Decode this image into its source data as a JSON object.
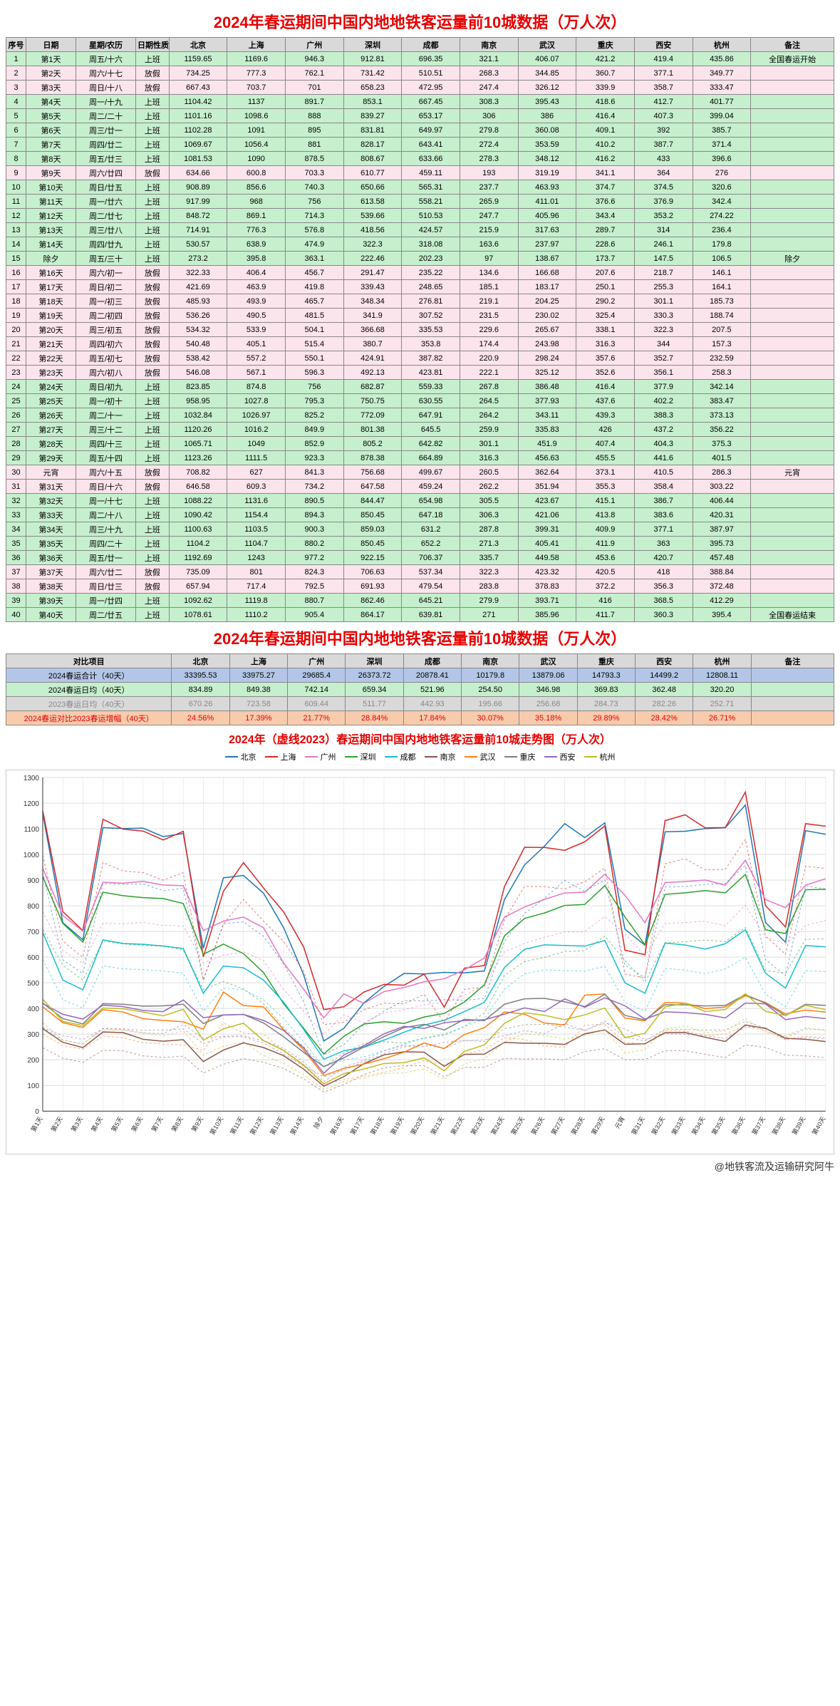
{
  "title1": "2024年春运期间中国内地地铁客运量前10城数据（万人次）",
  "title2": "2024年春运期间中国内地地铁客运量前10城数据（万人次）",
  "chartTitle": "2024年（虚线2023）春运期间中国内地地铁客运量前10城走势图（万人次）",
  "credit": "@地铁客流及运输研究阿牛",
  "headers": [
    "序号",
    "日期",
    "星期/农历",
    "日期性质",
    "北京",
    "上海",
    "广州",
    "深圳",
    "成都",
    "南京",
    "武汉",
    "重庆",
    "西安",
    "杭州",
    "备注"
  ],
  "cities": [
    "北京",
    "上海",
    "广州",
    "深圳",
    "成都",
    "南京",
    "武汉",
    "重庆",
    "西安",
    "杭州"
  ],
  "cityColors": [
    "#1f77b4",
    "#d62728",
    "#e377c2",
    "#2ca02c",
    "#17becf",
    "#8c564b",
    "#ff7f0e",
    "#7f7f7f",
    "#9467bd",
    "#bcbd22"
  ],
  "rows": [
    {
      "seq": 1,
      "day": "第1天",
      "week": "周五/十六",
      "type": "上班",
      "v": [
        1159.65,
        1169.6,
        946.3,
        912.81,
        696.35,
        321.1,
        406.07,
        421.2,
        419.4,
        435.86
      ],
      "note": "全国春运开始",
      "cls": "work"
    },
    {
      "seq": 2,
      "day": "第2天",
      "week": "周六/十七",
      "type": "放假",
      "v": [
        734.25,
        777.3,
        762.1,
        731.42,
        510.51,
        268.3,
        344.85,
        360.7,
        377.1,
        349.77
      ],
      "note": "",
      "cls": "pink"
    },
    {
      "seq": 3,
      "day": "第3天",
      "week": "周日/十八",
      "type": "放假",
      "v": [
        667.43,
        703.7,
        701,
        658.23,
        472.95,
        247.4,
        326.12,
        339.9,
        358.7,
        333.47
      ],
      "note": "",
      "cls": "pink"
    },
    {
      "seq": 4,
      "day": "第4天",
      "week": "周一/十九",
      "type": "上班",
      "v": [
        1104.42,
        1137,
        891.7,
        853.1,
        667.45,
        308.3,
        395.43,
        418.6,
        412.7,
        401.77
      ],
      "note": "",
      "cls": "work"
    },
    {
      "seq": 5,
      "day": "第5天",
      "week": "周二/二十",
      "type": "上班",
      "v": [
        1101.16,
        1098.6,
        888.0,
        839.27,
        653.17,
        306,
        386,
        416.4,
        407.3,
        399.04
      ],
      "note": "",
      "cls": "work"
    },
    {
      "seq": 6,
      "day": "第6天",
      "week": "周三/廿一",
      "type": "上班",
      "v": [
        1102.28,
        1091,
        895,
        831.81,
        649.97,
        279.8,
        360.08,
        409.1,
        392,
        385.7
      ],
      "note": "",
      "cls": "work"
    },
    {
      "seq": 7,
      "day": "第7天",
      "week": "周四/廿二",
      "type": "上班",
      "v": [
        1069.67,
        1056.4,
        881,
        828.17,
        643.41,
        272.4,
        353.59,
        410.2,
        387.7,
        371.4
      ],
      "note": "",
      "cls": "work"
    },
    {
      "seq": 8,
      "day": "第8天",
      "week": "周五/廿三",
      "type": "上班",
      "v": [
        1081.53,
        1090,
        878.5,
        808.67,
        633.66,
        278.3,
        348.12,
        416.2,
        433,
        396.6
      ],
      "note": "",
      "cls": "work"
    },
    {
      "seq": 9,
      "day": "第9天",
      "week": "周六/廿四",
      "type": "放假",
      "v": [
        634.66,
        600.8,
        703.3,
        610.77,
        459.11,
        193,
        319.19,
        341.1,
        364,
        276
      ],
      "note": "",
      "cls": "pink"
    },
    {
      "seq": 10,
      "day": "第10天",
      "week": "周日/廿五",
      "type": "上班",
      "v": [
        908.89,
        856.6,
        740.3,
        650.66,
        565.31,
        237.7,
        463.93,
        374.7,
        374.5,
        320.6
      ],
      "note": "",
      "cls": "work"
    },
    {
      "seq": 11,
      "day": "第11天",
      "week": "周一/廿六",
      "type": "上班",
      "v": [
        917.99,
        968,
        756,
        613.58,
        558.21,
        265.9,
        411.01,
        376.6,
        376.9,
        342.4
      ],
      "note": "",
      "cls": "work"
    },
    {
      "seq": 12,
      "day": "第12天",
      "week": "周二/廿七",
      "type": "上班",
      "v": [
        848.72,
        869.1,
        714.3,
        539.66,
        510.53,
        247.7,
        405.96,
        343.4,
        353.2,
        274.22
      ],
      "note": "",
      "cls": "work"
    },
    {
      "seq": 13,
      "day": "第13天",
      "week": "周三/廿八",
      "type": "上班",
      "v": [
        714.91,
        776.3,
        576.8,
        418.56,
        424.57,
        215.9,
        317.63,
        289.7,
        314,
        236.4
      ],
      "note": "",
      "cls": "work"
    },
    {
      "seq": 14,
      "day": "第14天",
      "week": "周四/廿九",
      "type": "上班",
      "v": [
        530.57,
        638.9,
        474.9,
        322.3,
        318.08,
        163.6,
        237.97,
        228.6,
        246.1,
        179.8
      ],
      "note": "",
      "cls": "work"
    },
    {
      "seq": 15,
      "day": "除夕",
      "week": "周五/三十",
      "type": "上班",
      "v": [
        273.2,
        395.8,
        363.1,
        222.46,
        202.23,
        97,
        138.67,
        173.7,
        147.5,
        106.5
      ],
      "note": "除夕",
      "cls": "work"
    },
    {
      "seq": 16,
      "day": "第16天",
      "week": "周六/初一",
      "type": "放假",
      "v": [
        322.33,
        406.4,
        456.7,
        291.47,
        235.22,
        134.6,
        166.68,
        207.6,
        218.7,
        146.1
      ],
      "note": "",
      "cls": "pink"
    },
    {
      "seq": 17,
      "day": "第17天",
      "week": "周日/初二",
      "type": "放假",
      "v": [
        421.69,
        463.9,
        419.8,
        339.43,
        248.65,
        185.1,
        183.17,
        250.1,
        255.3,
        164.1
      ],
      "note": "",
      "cls": "pink"
    },
    {
      "seq": 18,
      "day": "第18天",
      "week": "周一/初三",
      "type": "放假",
      "v": [
        485.93,
        493.9,
        465.7,
        348.34,
        276.81,
        219.1,
        204.25,
        290.2,
        301.1,
        185.73
      ],
      "note": "",
      "cls": "pink"
    },
    {
      "seq": 19,
      "day": "第19天",
      "week": "周二/初四",
      "type": "放假",
      "v": [
        536.26,
        490.5,
        481.5,
        341.9,
        307.52,
        231.5,
        230.02,
        325.4,
        330.3,
        188.74
      ],
      "note": "",
      "cls": "pink"
    },
    {
      "seq": 20,
      "day": "第20天",
      "week": "周三/初五",
      "type": "放假",
      "v": [
        534.32,
        533.9,
        504.1,
        366.68,
        335.53,
        229.6,
        265.67,
        338.1,
        322.3,
        207.5
      ],
      "note": "",
      "cls": "pink"
    },
    {
      "seq": 21,
      "day": "第21天",
      "week": "周四/初六",
      "type": "放假",
      "v": [
        540.48,
        405.1,
        515.4,
        380.7,
        353.8,
        174.4,
        243.98,
        316.3,
        344,
        157.3
      ],
      "note": "",
      "cls": "pink"
    },
    {
      "seq": 22,
      "day": "第22天",
      "week": "周五/初七",
      "type": "放假",
      "v": [
        538.42,
        557.2,
        550.1,
        424.91,
        387.82,
        220.9,
        298.24,
        357.6,
        352.7,
        232.59
      ],
      "note": "",
      "cls": "pink"
    },
    {
      "seq": 23,
      "day": "第23天",
      "week": "周六/初八",
      "type": "放假",
      "v": [
        546.08,
        567.1,
        596.3,
        492.13,
        423.81,
        222.1,
        325.12,
        352.6,
        356.1,
        258.3
      ],
      "note": "",
      "cls": "pink"
    },
    {
      "seq": 24,
      "day": "第24天",
      "week": "周日/初九",
      "type": "上班",
      "v": [
        823.85,
        874.8,
        756,
        682.87,
        559.33,
        267.8,
        386.48,
        416.4,
        377.9,
        342.14
      ],
      "note": "",
      "cls": "work"
    },
    {
      "seq": 25,
      "day": "第25天",
      "week": "周一/初十",
      "type": "上班",
      "v": [
        958.95,
        1027.8,
        795.3,
        750.75,
        630.55,
        264.5,
        377.93,
        437.6,
        402.2,
        383.47
      ],
      "note": "",
      "cls": "work"
    },
    {
      "seq": 26,
      "day": "第26天",
      "week": "周二/十一",
      "type": "上班",
      "v": [
        1032.84,
        1026.97,
        825.2,
        772.09,
        647.91,
        264.2,
        343.11,
        439.3,
        388.3,
        373.13
      ],
      "note": "",
      "cls": "work"
    },
    {
      "seq": 27,
      "day": "第27天",
      "week": "周三/十二",
      "type": "上班",
      "v": [
        1120.26,
        1016.2,
        849.9,
        801.38,
        645.5,
        259.9,
        335.83,
        426,
        437.2,
        356.22
      ],
      "note": "",
      "cls": "work"
    },
    {
      "seq": 28,
      "day": "第28天",
      "week": "周四/十三",
      "type": "上班",
      "v": [
        1065.71,
        1049,
        852.9,
        805.2,
        642.82,
        301.1,
        451.9,
        407.4,
        404.3,
        375.3
      ],
      "note": "",
      "cls": "work"
    },
    {
      "seq": 29,
      "day": "第29天",
      "week": "周五/十四",
      "type": "上班",
      "v": [
        1123.26,
        1111.5,
        923.3,
        878.38,
        664.89,
        316.3,
        456.63,
        455.5,
        441.6,
        401.5
      ],
      "note": "",
      "cls": "work"
    },
    {
      "seq": 30,
      "day": "元宵",
      "week": "周六/十五",
      "type": "放假",
      "v": [
        708.82,
        627,
        841.3,
        756.68,
        499.67,
        260.5,
        362.64,
        373.1,
        410.5,
        286.3
      ],
      "note": "元宵",
      "cls": "pink"
    },
    {
      "seq": 31,
      "day": "第31天",
      "week": "周日/十六",
      "type": "放假",
      "v": [
        646.58,
        609.3,
        734.2,
        647.58,
        459.24,
        262.2,
        351.94,
        355.3,
        358.4,
        303.22
      ],
      "note": "",
      "cls": "pink"
    },
    {
      "seq": 32,
      "day": "第32天",
      "week": "周一/十七",
      "type": "上班",
      "v": [
        1088.22,
        1131.6,
        890.5,
        844.47,
        654.98,
        305.5,
        423.67,
        415.1,
        386.7,
        406.44
      ],
      "note": "",
      "cls": "work"
    },
    {
      "seq": 33,
      "day": "第33天",
      "week": "周二/十八",
      "type": "上班",
      "v": [
        1090.42,
        1154.4,
        894.3,
        850.45,
        647.18,
        306.3,
        421.06,
        413.8,
        383.6,
        420.31
      ],
      "note": "",
      "cls": "work"
    },
    {
      "seq": 34,
      "day": "第34天",
      "week": "周三/十九",
      "type": "上班",
      "v": [
        1100.63,
        1103.5,
        900.3,
        859.03,
        631.2,
        287.8,
        399.31,
        409.9,
        377.1,
        387.97
      ],
      "note": "",
      "cls": "work"
    },
    {
      "seq": 35,
      "day": "第35天",
      "week": "周四/二十",
      "type": "上班",
      "v": [
        1104.2,
        1104.7,
        880.2,
        850.45,
        652.2,
        271.3,
        405.41,
        411.9,
        363,
        395.73
      ],
      "note": "",
      "cls": "work"
    },
    {
      "seq": 36,
      "day": "第36天",
      "week": "周五/廿一",
      "type": "上班",
      "v": [
        1192.69,
        1243,
        977.2,
        922.15,
        706.37,
        335.7,
        449.58,
        453.6,
        420.7,
        457.48
      ],
      "note": "",
      "cls": "work"
    },
    {
      "seq": 37,
      "day": "第37天",
      "week": "周六/廿二",
      "type": "放假",
      "v": [
        735.09,
        801,
        824.3,
        706.63,
        537.34,
        322.3,
        423.32,
        420.5,
        418,
        388.84
      ],
      "note": "",
      "cls": "pink"
    },
    {
      "seq": 38,
      "day": "第38天",
      "week": "周日/廿三",
      "type": "放假",
      "v": [
        657.94,
        717.4,
        792.5,
        691.93,
        479.54,
        283.8,
        378.83,
        372.2,
        356.3,
        372.48
      ],
      "note": "",
      "cls": "pink"
    },
    {
      "seq": 39,
      "day": "第39天",
      "week": "周一/廿四",
      "type": "上班",
      "v": [
        1092.62,
        1119.8,
        880.7,
        862.46,
        645.21,
        279.9,
        393.71,
        416,
        368.5,
        412.29
      ],
      "note": "",
      "cls": "work"
    },
    {
      "seq": 40,
      "day": "第40天",
      "week": "周二/廿五",
      "type": "上班",
      "v": [
        1078.61,
        1110.2,
        905.4,
        864.17,
        639.81,
        271,
        385.96,
        411.7,
        360.3,
        395.4
      ],
      "note": "全国春运结束",
      "cls": "work"
    }
  ],
  "sumHeaders": [
    "对比项目",
    "北京",
    "上海",
    "广州",
    "深圳",
    "成都",
    "南京",
    "武汉",
    "重庆",
    "西安",
    "杭州",
    "备注"
  ],
  "sumRows": [
    {
      "label": "2024春运合计（40天）",
      "v": [
        "33395.53",
        "33975.27",
        "29685.4",
        "26373.72",
        "20878.41",
        "10179.8",
        "13879.06",
        "14793.3",
        "14499.2",
        "12808.11"
      ],
      "cls": "sum-row-1"
    },
    {
      "label": "2024春运日均（40天）",
      "v": [
        "834.89",
        "849.38",
        "742.14",
        "659.34",
        "521.96",
        "254.50",
        "346.98",
        "369.83",
        "362.48",
        "320.20"
      ],
      "cls": "sum-row-2"
    },
    {
      "label": "2023春运日均（40天）",
      "v": [
        "670.26",
        "723.58",
        "609.44",
        "511.77",
        "442.93",
        "195.66",
        "256.68",
        "284.73",
        "282.26",
        "252.71"
      ],
      "cls": "sum-row-3"
    },
    {
      "label": "2024春运对比2023春运增幅（40天）",
      "v": [
        "24.56%",
        "17.39%",
        "21.77%",
        "28.84%",
        "17.84%",
        "30.07%",
        "35.18%",
        "29.89%",
        "28.42%",
        "26.71%"
      ],
      "cls": "sum-row-4"
    }
  ],
  "chart": {
    "ylim": [
      0,
      1300
    ],
    "ytick_step": 100,
    "grid_color": "#dddddd",
    "bg": "#ffffff",
    "line_width": 1.5,
    "font_size": 10
  }
}
